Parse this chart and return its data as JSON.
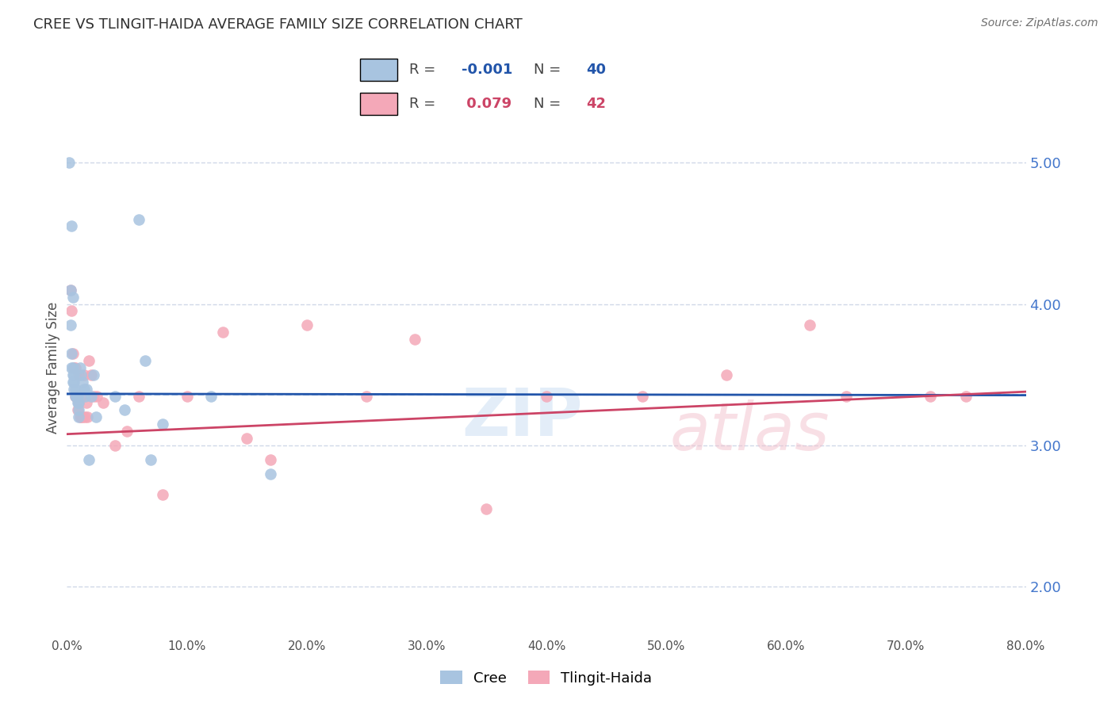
{
  "title": "CREE VS TLINGIT-HAIDA AVERAGE FAMILY SIZE CORRELATION CHART",
  "source": "Source: ZipAtlas.com",
  "ylabel": "Average Family Size",
  "xlim": [
    0.0,
    0.8
  ],
  "ylim": [
    1.65,
    5.45
  ],
  "yticks": [
    2.0,
    3.0,
    4.0,
    5.0
  ],
  "xticks": [
    0.0,
    0.1,
    0.2,
    0.3,
    0.4,
    0.5,
    0.6,
    0.7,
    0.8
  ],
  "xtick_labels": [
    "0.0%",
    "10.0%",
    "20.0%",
    "30.0%",
    "40.0%",
    "50.0%",
    "60.0%",
    "70.0%",
    "80.0%"
  ],
  "cree_color": "#a8c4e0",
  "tlingit_color": "#f4a8b8",
  "cree_trend_color": "#2255aa",
  "tlingit_trend_color": "#cc4466",
  "dashed_line_color": "#b8d0ec",
  "dashed_line_y": 3.36,
  "grid_color": "#d0d8e8",
  "background_color": "#ffffff",
  "title_color": "#303030",
  "source_color": "#707070",
  "axis_label_color": "#505050",
  "right_yaxis_color": "#4477cc",
  "cree_trend_x0": 0.0,
  "cree_trend_y0": 3.365,
  "cree_trend_x1": 0.8,
  "cree_trend_y1": 3.355,
  "tlingit_trend_x0": 0.0,
  "tlingit_trend_y0": 3.08,
  "tlingit_trend_x1": 0.8,
  "tlingit_trend_y1": 3.38,
  "cree_x": [
    0.002,
    0.004,
    0.003,
    0.005,
    0.003,
    0.004,
    0.004,
    0.005,
    0.005,
    0.006,
    0.005,
    0.006,
    0.006,
    0.007,
    0.007,
    0.008,
    0.008,
    0.009,
    0.009,
    0.01,
    0.01,
    0.01,
    0.011,
    0.012,
    0.013,
    0.014,
    0.015,
    0.016,
    0.018,
    0.02,
    0.022,
    0.024,
    0.04,
    0.048,
    0.06,
    0.065,
    0.07,
    0.08,
    0.12,
    0.17
  ],
  "cree_y": [
    5.0,
    4.55,
    4.1,
    4.05,
    3.85,
    3.65,
    3.55,
    3.55,
    3.5,
    3.5,
    3.45,
    3.45,
    3.4,
    3.4,
    3.35,
    3.35,
    3.35,
    3.35,
    3.3,
    3.3,
    3.25,
    3.2,
    3.55,
    3.5,
    3.45,
    3.4,
    3.35,
    3.4,
    2.9,
    3.35,
    3.5,
    3.2,
    3.35,
    3.25,
    4.6,
    3.6,
    2.9,
    3.15,
    3.35,
    2.8
  ],
  "tlingit_x": [
    0.003,
    0.004,
    0.005,
    0.006,
    0.007,
    0.007,
    0.008,
    0.009,
    0.01,
    0.01,
    0.011,
    0.012,
    0.012,
    0.013,
    0.014,
    0.015,
    0.016,
    0.017,
    0.018,
    0.02,
    0.022,
    0.025,
    0.03,
    0.04,
    0.05,
    0.06,
    0.08,
    0.1,
    0.13,
    0.15,
    0.17,
    0.2,
    0.25,
    0.29,
    0.35,
    0.4,
    0.48,
    0.55,
    0.62,
    0.65,
    0.72,
    0.75
  ],
  "tlingit_y": [
    4.1,
    3.95,
    3.65,
    3.55,
    3.55,
    3.35,
    3.35,
    3.25,
    3.5,
    3.3,
    3.2,
    3.2,
    3.35,
    3.2,
    3.5,
    3.2,
    3.3,
    3.2,
    3.6,
    3.5,
    3.35,
    3.35,
    3.3,
    3.0,
    3.1,
    3.35,
    2.65,
    3.35,
    3.8,
    3.05,
    2.9,
    3.85,
    3.35,
    3.75,
    2.55,
    3.35,
    3.35,
    3.5,
    3.85,
    3.35,
    3.35,
    3.35
  ]
}
